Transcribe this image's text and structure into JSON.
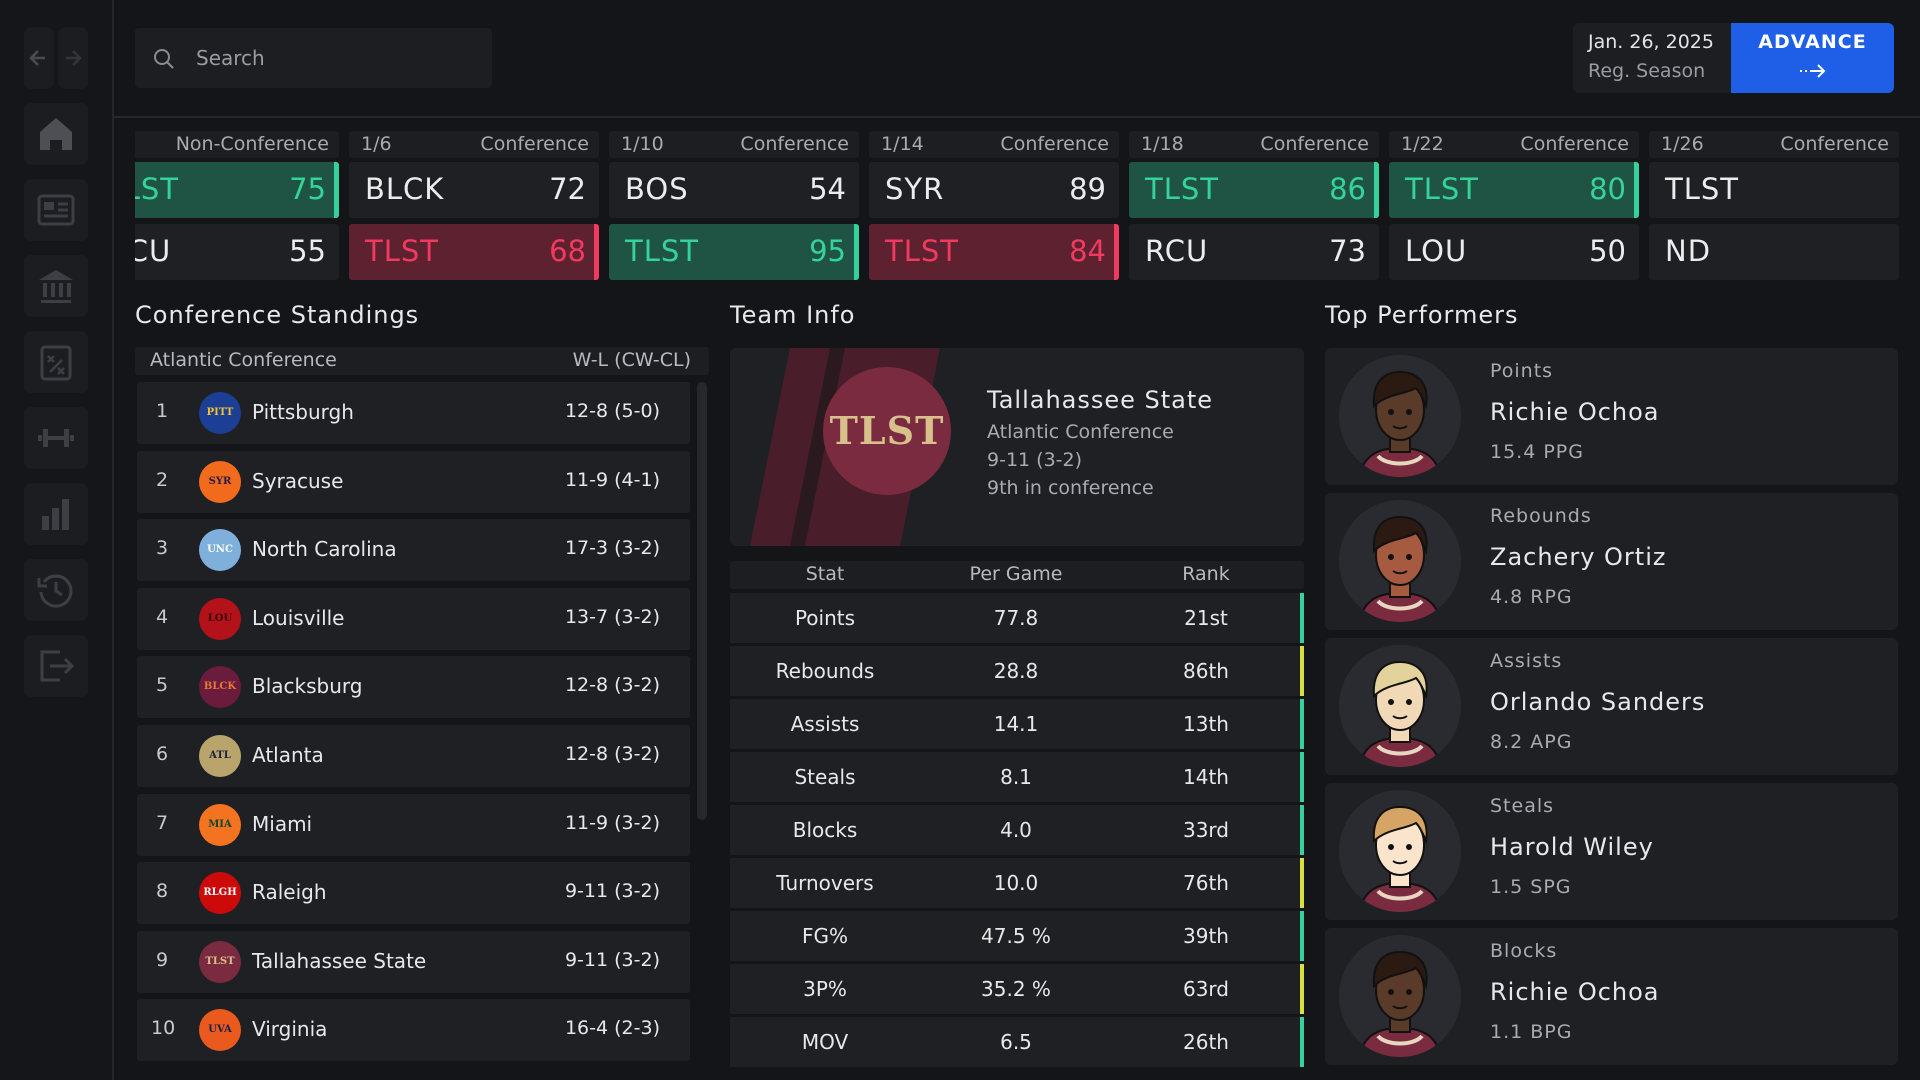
{
  "search": {
    "placeholder": "Search"
  },
  "header": {
    "date": "Jan. 26, 2025",
    "phase": "Reg. Season",
    "advance": "ADVANCE"
  },
  "games": [
    {
      "type": "Non-Conference",
      "teams": [
        {
          "abbr": "TLST",
          "score": 75,
          "accent": "#35d39b"
        },
        {
          "abbr": "NCU",
          "score": 55
        }
      ]
    },
    {
      "date": "1/6",
      "type": "Conference",
      "teams": [
        {
          "abbr": "BLCK",
          "score": 72
        },
        {
          "abbr": "TLST",
          "score": 68,
          "accent": "#f03a5f"
        }
      ]
    },
    {
      "date": "1/10",
      "type": "Conference",
      "teams": [
        {
          "abbr": "BOS",
          "score": 54
        },
        {
          "abbr": "TLST",
          "score": 95,
          "accent": "#35d39b"
        }
      ]
    },
    {
      "date": "1/14",
      "type": "Conference",
      "teams": [
        {
          "abbr": "SYR",
          "score": 89
        },
        {
          "abbr": "TLST",
          "score": 84,
          "accent": "#f03a5f"
        }
      ]
    },
    {
      "date": "1/18",
      "type": "Conference",
      "teams": [
        {
          "abbr": "TLST",
          "score": 86,
          "accent": "#35d39b"
        },
        {
          "abbr": "RCU",
          "score": 73
        }
      ]
    },
    {
      "date": "1/22",
      "type": "Conference",
      "teams": [
        {
          "abbr": "TLST",
          "score": 80,
          "accent": "#35d39b"
        },
        {
          "abbr": "LOU",
          "score": 50
        }
      ]
    },
    {
      "date": "1/26",
      "type": "Conference",
      "teams": [
        {
          "abbr": "TLST"
        },
        {
          "abbr": "ND"
        }
      ]
    }
  ],
  "standings": {
    "title": "Conference Standings",
    "conference": "Atlantic Conference",
    "record_header": "W-L (CW-CL)",
    "rows": [
      {
        "rank": 1,
        "logo": "PITT",
        "color": "#1c3f95",
        "text": "#f2c230",
        "team": "Pittsburgh",
        "record": "12-8 (5-0)"
      },
      {
        "rank": 2,
        "logo": "SYR",
        "color": "#f26b1d",
        "text": "#2a1a40",
        "team": "Syracuse",
        "record": "11-9 (4-1)"
      },
      {
        "rank": 3,
        "logo": "UNC",
        "color": "#7fb0dc",
        "text": "#ffffff",
        "team": "North Carolina",
        "record": "17-3 (3-2)"
      },
      {
        "rank": 4,
        "logo": "LOU",
        "color": "#b3121b",
        "text": "#3a0508",
        "team": "Louisville",
        "record": "13-7 (3-2)"
      },
      {
        "rank": 5,
        "logo": "BLCK",
        "color": "#6b1b3b",
        "text": "#e8793a",
        "team": "Blacksburg",
        "record": "12-8 (3-2)"
      },
      {
        "rank": 6,
        "logo": "ATL",
        "color": "#b9a46b",
        "text": "#1b2240",
        "team": "Atlanta",
        "record": "12-8 (3-2)"
      },
      {
        "rank": 7,
        "logo": "MIA",
        "color": "#f47321",
        "text": "#0b4a2a",
        "team": "Miami",
        "record": "11-9 (3-2)"
      },
      {
        "rank": 8,
        "logo": "RLGH",
        "color": "#cc0a0a",
        "text": "#ffffff",
        "team": "Raleigh",
        "record": "9-11 (3-2)"
      },
      {
        "rank": 9,
        "logo": "TLST",
        "color": "#7a2b40",
        "text": "#d8c08a",
        "team": "Tallahassee State",
        "record": "9-11 (3-2)"
      },
      {
        "rank": 10,
        "logo": "UVA",
        "color": "#ea5a1f",
        "text": "#1b2244",
        "team": "Virginia",
        "record": "16-4 (2-3)"
      }
    ]
  },
  "team_info": {
    "title": "Team Info",
    "logo": "TLST",
    "name": "Tallahassee State",
    "conference": "Atlantic Conference",
    "record": "9-11 (3-2)",
    "standing": "9th in conference",
    "columns": [
      "Stat",
      "Per Game",
      "Rank"
    ],
    "rows": [
      {
        "stat": "Points",
        "per_game": "77.8",
        "rank": "21st",
        "color": "#35d39b"
      },
      {
        "stat": "Rebounds",
        "per_game": "28.8",
        "rank": "86th",
        "color": "#d6e040"
      },
      {
        "stat": "Assists",
        "per_game": "14.1",
        "rank": "13th",
        "color": "#35d39b"
      },
      {
        "stat": "Steals",
        "per_game": "8.1",
        "rank": "14th",
        "color": "#35d39b"
      },
      {
        "stat": "Blocks",
        "per_game": "4.0",
        "rank": "33rd",
        "color": "#35d39b"
      },
      {
        "stat": "Turnovers",
        "per_game": "10.0",
        "rank": "76th",
        "color": "#d6e040"
      },
      {
        "stat": "FG%",
        "per_game": "47.5 %",
        "rank": "39th",
        "color": "#35d39b"
      },
      {
        "stat": "3P%",
        "per_game": "35.2 %",
        "rank": "63rd",
        "color": "#d6e040"
      },
      {
        "stat": "MOV",
        "per_game": "6.5",
        "rank": "26th",
        "color": "#35d39b"
      }
    ]
  },
  "top_performers": {
    "title": "Top Performers",
    "players": [
      {
        "category": "Points",
        "name": "Richie Ochoa",
        "stat": "15.4 PPG"
      },
      {
        "category": "Rebounds",
        "name": "Zachery Ortiz",
        "stat": "4.8 RPG"
      },
      {
        "category": "Assists",
        "name": "Orlando Sanders",
        "stat": "8.2 APG"
      },
      {
        "category": "Steals",
        "name": "Harold Wiley",
        "stat": "1.5 SPG"
      },
      {
        "category": "Blocks",
        "name": "Richie Ochoa",
        "stat": "1.1 BPG"
      }
    ]
  }
}
